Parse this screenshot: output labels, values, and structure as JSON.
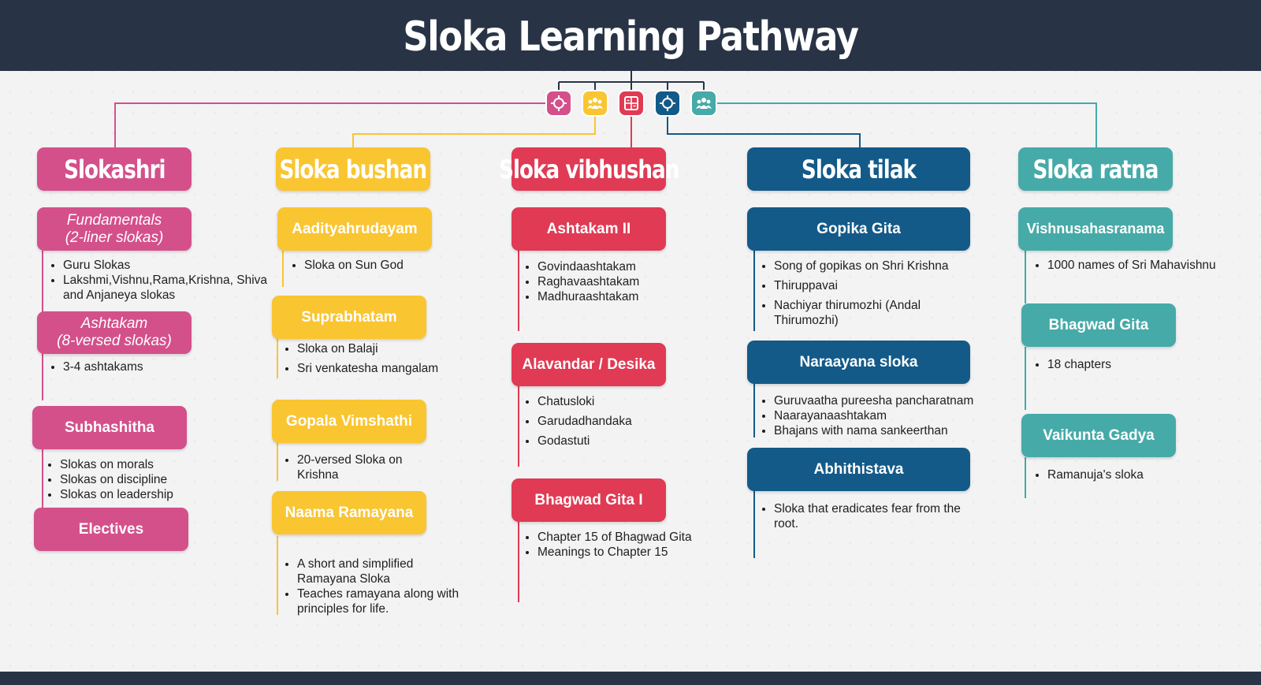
{
  "title": "Sloka Learning Pathway",
  "colors": {
    "header": "#283446",
    "slokashri": "#d4508b",
    "sloka_bushan": "#f9c531",
    "sloka_vibhushan": "#e03a54",
    "sloka_tilak": "#135a88",
    "sloka_ratna": "#46aaa8"
  },
  "icons": [
    "target-icon",
    "group-icon",
    "calculator-icon",
    "target-icon",
    "group-icon"
  ],
  "levels": [
    {
      "name": "Slokashri",
      "modules": [
        {
          "title": "Fundamentals\n(2-liner slokas)",
          "items": [
            "Guru Slokas",
            "Lakshmi,Vishnu,Rama,Krishna, Shiva and Anjaneya slokas"
          ]
        },
        {
          "title": "Ashtakam\n(8-versed slokas)",
          "items": [
            "3-4 ashtakams"
          ]
        },
        {
          "title": "Subhashitha",
          "items": [
            "Slokas on morals",
            "Slokas on discipline",
            "Slokas on leadership"
          ]
        },
        {
          "title": "Electives",
          "items": []
        }
      ]
    },
    {
      "name": "Sloka bushan",
      "modules": [
        {
          "title": "Aadityahrudayam",
          "items": [
            "Sloka on Sun God"
          ]
        },
        {
          "title": "Suprabhatam",
          "items": [
            "Sloka on Balaji",
            "Sri venkatesha mangalam"
          ]
        },
        {
          "title": "Gopala Vimshathi",
          "items": [
            "20-versed Sloka on Krishna"
          ]
        },
        {
          "title": "Naama Ramayana",
          "items": [
            "A short and simplified Ramayana Sloka",
            "Teaches ramayana along with principles for life."
          ]
        }
      ]
    },
    {
      "name": "Sloka vibhushan",
      "modules": [
        {
          "title": "Ashtakam II",
          "items": [
            "Govindaashtakam",
            "Raghavaashtakam",
            "Madhuraashtakam"
          ]
        },
        {
          "title": "Alavandar / Desika",
          "items": [
            "Chatusloki",
            "Garudadhandaka",
            "Godastuti"
          ]
        },
        {
          "title": "Bhagwad Gita I",
          "items": [
            "Chapter 15 of Bhagwad Gita",
            "Meanings to Chapter 15"
          ]
        }
      ]
    },
    {
      "name": "Sloka tilak",
      "modules": [
        {
          "title": "Gopika Gita",
          "items": [
            "Song of gopikas on Shri Krishna",
            "Thiruppavai",
            "Nachiyar thirumozhi (Andal Thirumozhi)"
          ]
        },
        {
          "title": "Naraayana sloka",
          "items": [
            "Guruvaatha pureesha pancharatnam",
            "Naarayanaashtakam",
            "Bhajans with nama sankeerthan"
          ]
        },
        {
          "title": "Abhithistava",
          "items": [
            "Sloka that eradicates fear from the root."
          ]
        }
      ]
    },
    {
      "name": "Sloka ratna",
      "modules": [
        {
          "title": "Vishnusahasranama",
          "items": [
            "1000 names of Sri Mahavishnu"
          ]
        },
        {
          "title": "Bhagwad Gita",
          "items": [
            "18 chapters"
          ]
        },
        {
          "title": "Vaikunta Gadya",
          "items": [
            "Ramanuja's sloka"
          ]
        }
      ]
    }
  ]
}
